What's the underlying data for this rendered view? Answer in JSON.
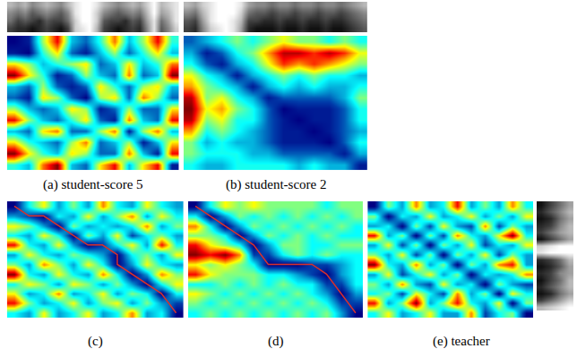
{
  "chart_data": [
    {
      "type": "heatmap",
      "title": "(a) student-score 5",
      "tick_labels": false,
      "z": [
        [
          0.05,
          0.1,
          0.5,
          0.8,
          0.3,
          0.2,
          0.4,
          0.7,
          0.3,
          0.5,
          0.8,
          0.4
        ],
        [
          0.1,
          0.05,
          0.4,
          0.6,
          0.2,
          0.1,
          0.3,
          0.5,
          0.2,
          0.4,
          0.6,
          0.3
        ],
        [
          0.6,
          0.5,
          0.3,
          0.4,
          0.5,
          0.6,
          0.2,
          0.3,
          0.6,
          0.3,
          0.4,
          0.7
        ],
        [
          0.9,
          0.6,
          0.4,
          0.1,
          0.2,
          0.5,
          0.3,
          0.2,
          0.7,
          0.2,
          0.3,
          0.9
        ],
        [
          0.3,
          0.2,
          0.5,
          0.2,
          0.1,
          0.2,
          0.6,
          0.4,
          0.2,
          0.5,
          0.6,
          0.3
        ],
        [
          0.2,
          0.1,
          0.6,
          0.5,
          0.2,
          0.05,
          0.5,
          0.6,
          0.2,
          0.7,
          0.5,
          0.2
        ],
        [
          0.5,
          0.3,
          0.2,
          0.3,
          0.6,
          0.5,
          0.1,
          0.2,
          0.5,
          0.2,
          0.2,
          0.6
        ],
        [
          0.8,
          0.5,
          0.3,
          0.2,
          0.4,
          0.6,
          0.2,
          0.1,
          0.7,
          0.3,
          0.2,
          0.8
        ],
        [
          0.3,
          0.2,
          0.6,
          0.7,
          0.2,
          0.2,
          0.5,
          0.7,
          0.1,
          0.5,
          0.7,
          0.3
        ],
        [
          0.6,
          0.4,
          0.3,
          0.2,
          0.5,
          0.7,
          0.2,
          0.3,
          0.5,
          0.1,
          0.3,
          0.6
        ],
        [
          0.9,
          0.6,
          0.4,
          0.3,
          0.6,
          0.5,
          0.2,
          0.2,
          0.7,
          0.3,
          0.1,
          0.8
        ],
        [
          0.4,
          0.3,
          0.7,
          0.9,
          0.3,
          0.2,
          0.6,
          0.8,
          0.3,
          0.6,
          0.8,
          0.1
        ]
      ],
      "spectrogram": [
        [
          0.3,
          0.4,
          0.3,
          0.5,
          0.4,
          0.3,
          0.4,
          0.5,
          0.3,
          0.1,
          0.0,
          0.0,
          0.1,
          0.3,
          0.4,
          0.5,
          0.4,
          0.3,
          0.4,
          0.2,
          0.0,
          0.3,
          0.2,
          0.1
        ],
        [
          0.5,
          0.6,
          0.5,
          0.7,
          0.6,
          0.5,
          0.6,
          0.7,
          0.5,
          0.1,
          0.0,
          0.0,
          0.2,
          0.5,
          0.6,
          0.7,
          0.6,
          0.5,
          0.6,
          0.3,
          0.0,
          0.4,
          0.3,
          0.1
        ],
        [
          0.6,
          0.8,
          0.7,
          0.8,
          0.9,
          0.7,
          0.8,
          0.8,
          0.6,
          0.2,
          0.0,
          0.0,
          0.2,
          0.7,
          0.8,
          0.8,
          0.9,
          0.7,
          0.8,
          0.4,
          0.1,
          0.6,
          0.4,
          0.1
        ],
        [
          0.8,
          0.9,
          0.9,
          1.0,
          0.9,
          0.8,
          0.9,
          1.0,
          0.8,
          0.2,
          0.1,
          0.0,
          0.3,
          0.8,
          0.9,
          1.0,
          0.9,
          0.8,
          0.9,
          0.5,
          0.1,
          0.7,
          0.5,
          0.2
        ]
      ]
    },
    {
      "type": "heatmap",
      "title": "(b) student-score 2",
      "tick_labels": false,
      "z": [
        [
          0.2,
          0.3,
          0.4,
          0.5,
          0.4,
          0.5,
          0.6,
          0.5,
          0.5,
          0.4,
          0.5,
          0.4
        ],
        [
          0.3,
          0.1,
          0.2,
          0.4,
          0.5,
          0.7,
          0.9,
          0.9,
          0.8,
          0.9,
          0.8,
          0.6
        ],
        [
          0.4,
          0.2,
          0.1,
          0.3,
          0.4,
          0.6,
          0.8,
          0.7,
          0.8,
          0.7,
          0.6,
          0.5
        ],
        [
          0.6,
          0.4,
          0.3,
          0.1,
          0.3,
          0.4,
          0.5,
          0.4,
          0.5,
          0.4,
          0.4,
          0.3
        ],
        [
          0.7,
          0.5,
          0.4,
          0.3,
          0.1,
          0.3,
          0.4,
          0.3,
          0.4,
          0.3,
          0.3,
          0.4
        ],
        [
          0.9,
          0.5,
          0.6,
          0.4,
          0.3,
          0.1,
          0.2,
          0.2,
          0.2,
          0.2,
          0.3,
          0.5
        ],
        [
          0.95,
          0.6,
          0.7,
          0.5,
          0.4,
          0.2,
          0.05,
          0.1,
          0.1,
          0.1,
          0.2,
          0.4
        ],
        [
          0.9,
          0.5,
          0.6,
          0.4,
          0.4,
          0.2,
          0.1,
          0.05,
          0.1,
          0.1,
          0.2,
          0.4
        ],
        [
          0.7,
          0.4,
          0.5,
          0.4,
          0.3,
          0.2,
          0.1,
          0.1,
          0.05,
          0.1,
          0.2,
          0.3
        ],
        [
          0.5,
          0.3,
          0.4,
          0.3,
          0.3,
          0.2,
          0.1,
          0.1,
          0.1,
          0.05,
          0.2,
          0.4
        ],
        [
          0.5,
          0.4,
          0.4,
          0.4,
          0.3,
          0.3,
          0.2,
          0.2,
          0.2,
          0.2,
          0.1,
          0.3
        ],
        [
          0.4,
          0.3,
          0.3,
          0.4,
          0.4,
          0.4,
          0.4,
          0.3,
          0.4,
          0.3,
          0.3,
          0.1
        ]
      ],
      "spectrogram": [
        [
          0.3,
          0.4,
          0.2,
          0.1,
          0.0,
          0.0,
          0.0,
          0.1,
          0.4,
          0.5,
          0.5,
          0.6,
          0.5,
          0.5,
          0.6,
          0.5,
          0.5,
          0.6,
          0.5,
          0.5,
          0.6,
          0.5,
          0.4,
          0.3
        ],
        [
          0.5,
          0.6,
          0.3,
          0.1,
          0.0,
          0.0,
          0.0,
          0.2,
          0.6,
          0.7,
          0.7,
          0.8,
          0.7,
          0.7,
          0.8,
          0.7,
          0.7,
          0.8,
          0.7,
          0.7,
          0.8,
          0.7,
          0.6,
          0.5
        ],
        [
          0.7,
          0.8,
          0.4,
          0.1,
          0.0,
          0.0,
          0.1,
          0.3,
          0.8,
          0.8,
          0.9,
          0.9,
          0.8,
          0.9,
          0.9,
          0.8,
          0.9,
          0.9,
          0.8,
          0.9,
          0.9,
          0.8,
          0.7,
          0.6
        ],
        [
          0.8,
          0.9,
          0.5,
          0.2,
          0.1,
          0.0,
          0.1,
          0.4,
          0.9,
          1.0,
          1.0,
          1.0,
          0.9,
          1.0,
          1.0,
          0.9,
          1.0,
          1.0,
          0.9,
          1.0,
          1.0,
          0.9,
          0.8,
          0.7
        ]
      ]
    },
    {
      "type": "heatmap",
      "title": "(c)",
      "tick_labels": false,
      "z": [
        [
          0.1,
          0.4,
          0.6,
          0.3,
          0.5,
          0.3,
          0.7,
          0.4,
          0.3,
          0.6,
          0.4,
          0.3
        ],
        [
          0.3,
          0.2,
          0.1,
          0.4,
          0.3,
          0.6,
          0.3,
          0.5,
          0.7,
          0.3,
          0.6,
          0.4
        ],
        [
          0.6,
          0.5,
          0.3,
          0.1,
          0.5,
          0.3,
          0.4,
          0.3,
          0.4,
          0.7,
          0.3,
          0.5
        ],
        [
          0.4,
          0.3,
          0.6,
          0.4,
          0.1,
          0.5,
          0.3,
          0.6,
          0.2,
          0.4,
          0.5,
          0.3
        ],
        [
          0.8,
          0.4,
          0.3,
          0.6,
          0.3,
          0.1,
          0.2,
          0.4,
          0.6,
          0.3,
          0.8,
          0.4
        ],
        [
          0.3,
          0.6,
          0.4,
          0.3,
          0.5,
          0.4,
          0.3,
          0.1,
          0.4,
          0.5,
          0.3,
          0.6
        ],
        [
          0.5,
          0.3,
          0.7,
          0.5,
          0.3,
          0.6,
          0.4,
          0.1,
          0.3,
          0.6,
          0.4,
          0.3
        ],
        [
          0.9,
          0.4,
          0.3,
          0.6,
          0.4,
          0.3,
          0.7,
          0.4,
          0.1,
          0.3,
          0.7,
          0.5
        ],
        [
          0.4,
          0.6,
          0.5,
          0.3,
          0.6,
          0.5,
          0.3,
          0.5,
          0.3,
          0.1,
          0.4,
          0.6
        ],
        [
          0.6,
          0.3,
          0.4,
          0.7,
          0.3,
          0.4,
          0.6,
          0.3,
          0.5,
          0.4,
          0.1,
          0.4
        ],
        [
          0.8,
          0.5,
          0.3,
          0.4,
          0.6,
          0.3,
          0.5,
          0.6,
          0.3,
          0.5,
          0.3,
          0.2
        ],
        [
          0.4,
          0.3,
          0.6,
          0.3,
          0.4,
          0.6,
          0.3,
          0.4,
          0.7,
          0.3,
          0.4,
          0.1
        ]
      ],
      "path": {
        "color": "#d9302b",
        "x": [
          0,
          1,
          2,
          3,
          4,
          5,
          6,
          7,
          7,
          8,
          9,
          10,
          11
        ],
        "y": [
          0,
          1,
          1,
          2,
          3,
          4,
          4,
          5,
          6,
          7,
          8,
          9,
          11
        ]
      }
    },
    {
      "type": "heatmap",
      "title": "(d)",
      "tick_labels": false,
      "z": [
        [
          0.1,
          0.4,
          0.6,
          0.5,
          0.6,
          0.5,
          0.5,
          0.5,
          0.5,
          0.4,
          0.5,
          0.5
        ],
        [
          0.4,
          0.1,
          0.3,
          0.5,
          0.4,
          0.5,
          0.4,
          0.5,
          0.4,
          0.5,
          0.4,
          0.5
        ],
        [
          0.7,
          0.4,
          0.1,
          0.3,
          0.5,
          0.4,
          0.5,
          0.4,
          0.5,
          0.4,
          0.5,
          0.4
        ],
        [
          0.5,
          0.5,
          0.4,
          0.1,
          0.3,
          0.5,
          0.4,
          0.5,
          0.4,
          0.5,
          0.4,
          0.4
        ],
        [
          0.8,
          0.6,
          0.5,
          0.4,
          0.1,
          0.3,
          0.5,
          0.5,
          0.4,
          0.4,
          0.5,
          0.5
        ],
        [
          0.9,
          0.8,
          0.9,
          0.7,
          0.2,
          0.2,
          0.4,
          0.5,
          0.4,
          0.5,
          0.4,
          0.4
        ],
        [
          0.6,
          0.5,
          0.6,
          0.5,
          0.4,
          0.1,
          0.1,
          0.1,
          0.2,
          0.2,
          0.3,
          0.4
        ],
        [
          0.8,
          0.6,
          0.5,
          0.5,
          0.5,
          0.4,
          0.4,
          0.3,
          0.2,
          0.1,
          0.3,
          0.4
        ],
        [
          0.4,
          0.4,
          0.5,
          0.4,
          0.5,
          0.4,
          0.5,
          0.4,
          0.4,
          0.2,
          0.2,
          0.4
        ],
        [
          0.6,
          0.5,
          0.4,
          0.5,
          0.4,
          0.5,
          0.4,
          0.5,
          0.4,
          0.3,
          0.1,
          0.3
        ],
        [
          0.5,
          0.4,
          0.5,
          0.4,
          0.5,
          0.4,
          0.5,
          0.4,
          0.5,
          0.4,
          0.2,
          0.2
        ],
        [
          0.4,
          0.5,
          0.4,
          0.5,
          0.4,
          0.5,
          0.4,
          0.5,
          0.4,
          0.5,
          0.3,
          0.1
        ]
      ],
      "path": {
        "color": "#d9302b",
        "x": [
          0,
          1,
          2,
          3,
          4,
          5,
          6,
          7,
          8,
          9,
          10,
          11
        ],
        "y": [
          0,
          1,
          2,
          3,
          4,
          6,
          6,
          6,
          6,
          7,
          9,
          11
        ]
      }
    },
    {
      "type": "heatmap",
      "title": "(e) teacher",
      "tick_labels": false,
      "z": [
        [
          0.1,
          0.5,
          0.3,
          0.7,
          0.3,
          0.4,
          0.8,
          0.3,
          0.5,
          0.3,
          0.7,
          0.4
        ],
        [
          0.5,
          0.1,
          0.4,
          0.3,
          0.6,
          0.3,
          0.4,
          0.6,
          0.3,
          0.5,
          0.3,
          0.6
        ],
        [
          0.3,
          0.4,
          0.1,
          0.5,
          0.2,
          0.6,
          0.3,
          0.2,
          0.7,
          0.2,
          0.5,
          0.3
        ],
        [
          0.8,
          0.3,
          0.5,
          0.1,
          0.5,
          0.2,
          0.7,
          0.4,
          0.3,
          0.6,
          0.9,
          0.4
        ],
        [
          0.3,
          0.6,
          0.2,
          0.5,
          0.1,
          0.5,
          0.3,
          0.6,
          0.2,
          0.4,
          0.3,
          0.6
        ],
        [
          0.5,
          0.3,
          0.6,
          0.2,
          0.5,
          0.1,
          0.5,
          0.3,
          0.6,
          0.2,
          0.5,
          0.3
        ],
        [
          0.9,
          0.4,
          0.3,
          0.7,
          0.3,
          0.5,
          0.1,
          0.5,
          0.3,
          0.7,
          0.8,
          0.3
        ],
        [
          0.3,
          0.6,
          0.2,
          0.4,
          0.6,
          0.3,
          0.5,
          0.1,
          0.4,
          0.3,
          0.4,
          0.7
        ],
        [
          0.5,
          0.3,
          0.7,
          0.3,
          0.2,
          0.6,
          0.3,
          0.4,
          0.1,
          0.5,
          0.3,
          0.2
        ],
        [
          0.4,
          0.5,
          0.2,
          0.6,
          0.4,
          0.2,
          0.7,
          0.3,
          0.5,
          0.1,
          0.6,
          0.4
        ],
        [
          0.8,
          0.3,
          0.5,
          0.9,
          0.3,
          0.5,
          0.8,
          0.4,
          0.3,
          0.6,
          0.1,
          0.5
        ],
        [
          0.4,
          0.6,
          0.3,
          0.4,
          0.6,
          0.3,
          0.3,
          0.7,
          0.2,
          0.4,
          0.5,
          0.1
        ]
      ],
      "spectrogram": [
        [
          1.0,
          0.8,
          0.6,
          0.4
        ],
        [
          0.9,
          0.7,
          0.5,
          0.3
        ],
        [
          1.0,
          0.9,
          0.6,
          0.4
        ],
        [
          0.9,
          0.8,
          0.5,
          0.3
        ],
        [
          0.8,
          0.6,
          0.4,
          0.3
        ],
        [
          1.0,
          0.8,
          0.6,
          0.4
        ],
        [
          0.2,
          0.1,
          0.0,
          0.0
        ],
        [
          0.1,
          0.0,
          0.0,
          0.0
        ],
        [
          0.9,
          0.8,
          0.6,
          0.3
        ],
        [
          1.0,
          0.9,
          0.7,
          0.4
        ],
        [
          0.9,
          0.8,
          0.5,
          0.4
        ],
        [
          1.0,
          0.8,
          0.6,
          0.3
        ],
        [
          0.9,
          0.7,
          0.5,
          0.3
        ],
        [
          1.0,
          0.9,
          0.6,
          0.4
        ],
        [
          0.8,
          0.6,
          0.4,
          0.2
        ],
        [
          0.3,
          0.2,
          0.1,
          0.0
        ]
      ]
    }
  ]
}
